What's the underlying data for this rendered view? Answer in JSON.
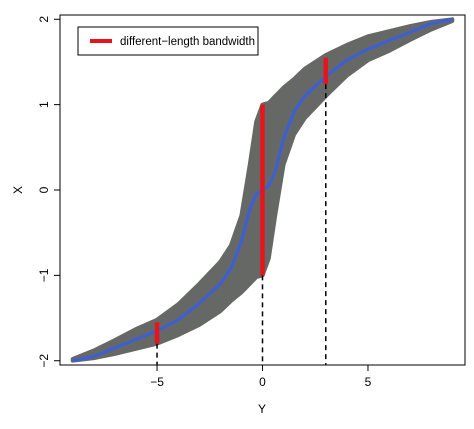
{
  "chart_data": {
    "type": "scatter",
    "title": "",
    "xlabel": "Y",
    "ylabel": "X",
    "xlim": [
      -9.6,
      9.6
    ],
    "ylim": [
      -2.05,
      2.05
    ],
    "x_ticks": [
      -5,
      0,
      5
    ],
    "x_tick_labels": [
      "−5",
      "0",
      "5"
    ],
    "y_ticks": [
      -2,
      -1,
      0,
      1,
      2
    ],
    "y_tick_labels": [
      "−2",
      "−1",
      "0",
      "1",
      "2"
    ],
    "grid": false,
    "legend_position": "top-left",
    "legend": [
      {
        "label": "different−length bandwidth",
        "color": "#e8141c"
      }
    ],
    "colors": {
      "scatter": "#666865",
      "curve": "#3a5fd9",
      "bandwidth": "#e8141c",
      "dashed": "#000000"
    },
    "series": [
      {
        "type": "band",
        "points": [
          {
            "x": -9.0,
            "ylo": -2.0,
            "yhi": -1.98
          },
          {
            "x": -8.0,
            "ylo": -1.97,
            "yhi": -1.88
          },
          {
            "x": -7.0,
            "ylo": -1.92,
            "yhi": -1.76
          },
          {
            "x": -6.0,
            "ylo": -1.86,
            "yhi": -1.63
          },
          {
            "x": -5.0,
            "ylo": -1.8,
            "yhi": -1.52
          },
          {
            "x": -4.0,
            "ylo": -1.7,
            "yhi": -1.34
          },
          {
            "x": -3.0,
            "ylo": -1.58,
            "yhi": -1.1
          },
          {
            "x": -2.0,
            "ylo": -1.42,
            "yhi": -0.84
          },
          {
            "x": -1.5,
            "ylo": -1.3,
            "yhi": -0.65
          },
          {
            "x": -1.0,
            "ylo": -1.2,
            "yhi": -0.3
          },
          {
            "x": -0.6,
            "ylo": -1.1,
            "yhi": 0.3
          },
          {
            "x": -0.3,
            "ylo": -1.02,
            "yhi": 0.8
          },
          {
            "x": 0.0,
            "ylo": -1.0,
            "yhi": 1.0
          },
          {
            "x": 0.3,
            "ylo": -0.8,
            "yhi": 1.02
          },
          {
            "x": 0.6,
            "ylo": -0.3,
            "yhi": 1.1
          },
          {
            "x": 1.0,
            "ylo": 0.3,
            "yhi": 1.2
          },
          {
            "x": 1.5,
            "ylo": 0.65,
            "yhi": 1.3
          },
          {
            "x": 2.0,
            "ylo": 0.84,
            "yhi": 1.42
          },
          {
            "x": 3.0,
            "ylo": 1.1,
            "yhi": 1.58
          },
          {
            "x": 4.0,
            "ylo": 1.34,
            "yhi": 1.7
          },
          {
            "x": 5.0,
            "ylo": 1.52,
            "yhi": 1.8
          },
          {
            "x": 6.0,
            "ylo": 1.63,
            "yhi": 1.86
          },
          {
            "x": 7.0,
            "ylo": 1.76,
            "yhi": 1.92
          },
          {
            "x": 8.0,
            "ylo": 1.88,
            "yhi": 1.97
          },
          {
            "x": 9.0,
            "ylo": 1.98,
            "yhi": 2.0
          }
        ]
      },
      {
        "type": "line",
        "x": [
          -9.0,
          -8.0,
          -7.0,
          -6.0,
          -5.0,
          -4.0,
          -3.0,
          -2.0,
          -1.5,
          -1.0,
          -0.6,
          -0.3,
          0.0,
          0.3,
          0.6,
          1.0,
          1.5,
          2.0,
          3.0,
          4.0,
          5.0,
          6.0,
          7.0,
          8.0,
          9.0
        ],
        "y": [
          -2.0,
          -1.95,
          -1.85,
          -1.75,
          -1.65,
          -1.52,
          -1.33,
          -1.1,
          -0.92,
          -0.6,
          -0.22,
          -0.05,
          0.0,
          0.05,
          0.22,
          0.6,
          0.92,
          1.1,
          1.33,
          1.52,
          1.65,
          1.75,
          1.85,
          1.95,
          2.0
        ]
      }
    ],
    "bandwidth_segments": [
      {
        "x": -5,
        "y0": -1.8,
        "y1": -1.55
      },
      {
        "x": 0,
        "y0": -1.0,
        "y1": 1.0
      },
      {
        "x": 3,
        "y0": 1.24,
        "y1": 1.55
      }
    ],
    "dashed_lines": [
      {
        "x": -5,
        "from_y": -1.8
      },
      {
        "x": 0,
        "from_y": -1.0
      },
      {
        "x": 3,
        "from_y": 1.24
      }
    ]
  }
}
